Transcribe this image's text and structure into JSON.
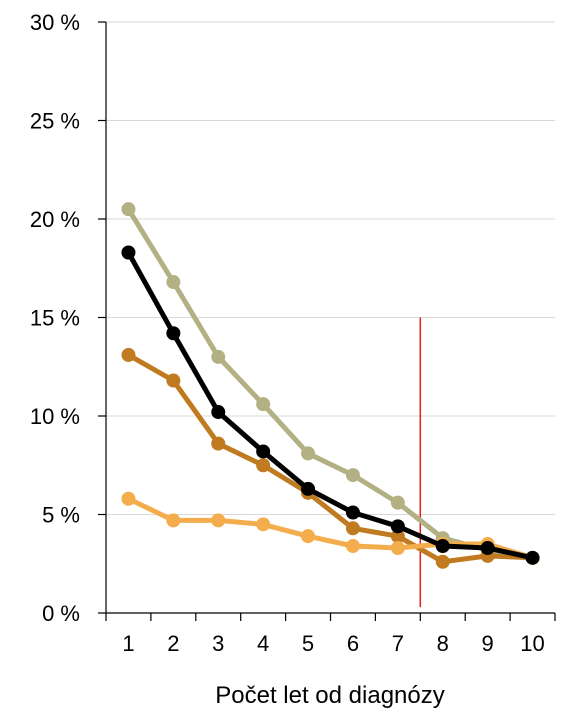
{
  "chart_data": {
    "type": "line",
    "title": "",
    "xlabel": "Počet let od diagnózy",
    "ylabel": "",
    "categories": [
      "1",
      "2",
      "3",
      "4",
      "5",
      "6",
      "7",
      "8",
      "9",
      "10"
    ],
    "y_ticks": [
      "0 %",
      "5 %",
      "10 %",
      "15 %",
      "20 %",
      "25 %",
      "30 %"
    ],
    "ylim": [
      0,
      30
    ],
    "grid": "horizontal",
    "legend": "none",
    "series": [
      {
        "color": "#b3b083",
        "values": [
          20.5,
          16.8,
          13.0,
          10.6,
          8.1,
          7.0,
          5.6,
          3.8,
          3.2,
          2.8
        ]
      },
      {
        "color": "#c07a1f",
        "values": [
          13.1,
          11.8,
          8.6,
          7.5,
          6.1,
          4.3,
          3.9,
          2.6,
          2.9,
          2.8
        ]
      },
      {
        "color": "#f4ad4c",
        "values": [
          5.8,
          4.7,
          4.7,
          4.5,
          3.9,
          3.4,
          3.3,
          3.5,
          3.5,
          2.8
        ]
      },
      {
        "color": "#000000",
        "values": [
          18.3,
          14.2,
          10.2,
          8.2,
          6.3,
          5.1,
          4.4,
          3.4,
          3.3,
          2.8
        ]
      }
    ],
    "reference_line": {
      "x": 7.5,
      "y_from": 0.3,
      "y_to": 15.0,
      "color": "#e02020"
    }
  }
}
